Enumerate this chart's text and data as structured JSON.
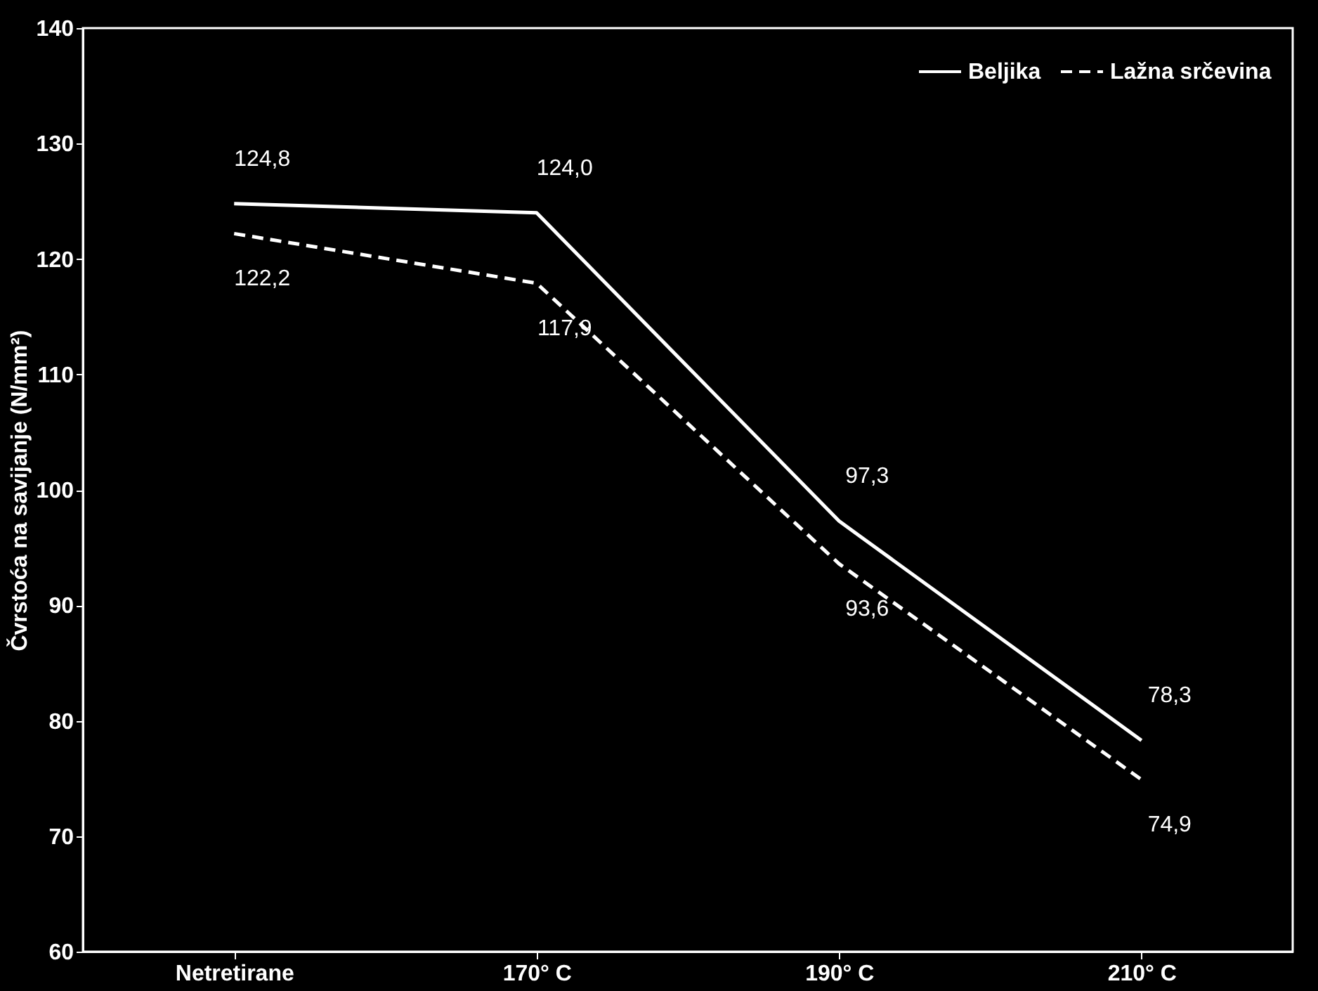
{
  "chart_data": {
    "type": "line",
    "ylabel": "Čvrstoća na savijanje (N/mm²)",
    "categories": [
      "Netretirane",
      "170° C",
      "190° C",
      "210° C"
    ],
    "series": [
      {
        "name": "Beljika",
        "color": "#ffffff",
        "line_style": "solid",
        "values": [
          124.8,
          124.0,
          97.3,
          78.3
        ],
        "value_labels": [
          "124,8",
          "124,0",
          "97,3",
          "78,3"
        ]
      },
      {
        "name": "Lažna srčevina",
        "color": "#ffffff",
        "line_style": "dashed",
        "values": [
          122.2,
          117.9,
          93.6,
          74.9
        ],
        "value_labels": [
          "122,2",
          "117,9",
          "93,6",
          "74,9"
        ]
      }
    ],
    "ylim": [
      60,
      140
    ],
    "yticks": [
      60,
      70,
      80,
      90,
      100,
      110,
      120,
      130,
      140
    ],
    "grid": false,
    "legend": "top right",
    "marker": "none"
  }
}
